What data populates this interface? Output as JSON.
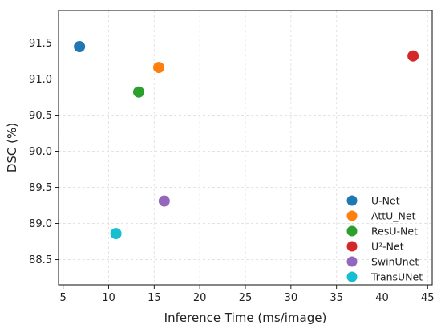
{
  "chart_data": {
    "type": "scatter",
    "title": "",
    "xlabel": "Inference Time (ms/image)",
    "ylabel": "DSC (%)",
    "xlim": [
      4.5,
      45.5
    ],
    "ylim": [
      88.15,
      91.95
    ],
    "xticks": [
      5,
      10,
      15,
      20,
      25,
      30,
      35,
      40,
      45
    ],
    "yticks": [
      88.5,
      89.0,
      89.5,
      90.0,
      90.5,
      91.0,
      91.5
    ],
    "grid": true,
    "legend_position": "bottom-right",
    "series": [
      {
        "name": "U-Net",
        "x": 6.8,
        "y": 91.45,
        "color": "#1f77b4"
      },
      {
        "name": "AttU_Net",
        "x": 15.5,
        "y": 91.16,
        "color": "#ff7f0e"
      },
      {
        "name": "ResU-Net",
        "x": 13.3,
        "y": 90.82,
        "color": "#2ca02c"
      },
      {
        "name": "U²-Net",
        "x": 43.4,
        "y": 91.32,
        "color": "#d62728"
      },
      {
        "name": "SwinUnet",
        "x": 16.1,
        "y": 89.31,
        "color": "#9467bd"
      },
      {
        "name": "TransUNet",
        "x": 10.8,
        "y": 88.86,
        "color": "#17becf"
      }
    ]
  }
}
